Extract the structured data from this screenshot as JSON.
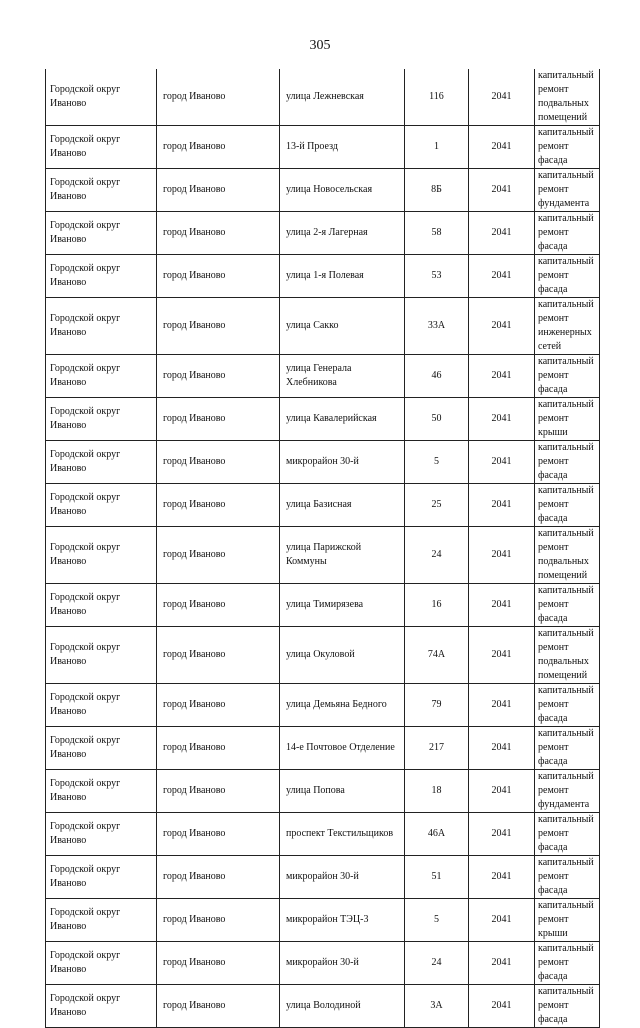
{
  "page_number": "305",
  "rows": [
    {
      "okrug": "Городской округ Иваново",
      "city": "город Иваново",
      "street": "улица Лежневская",
      "house": "116",
      "year": "2041",
      "work": "капитальный ремонт подвальных помещений"
    },
    {
      "okrug": "Городской округ Иваново",
      "city": "город Иваново",
      "street": "13-й Проезд",
      "house": "1",
      "year": "2041",
      "work": "капитальный ремонт фасада"
    },
    {
      "okrug": "Городской округ Иваново",
      "city": "город Иваново",
      "street": "улица Новосельская",
      "house": "8Б",
      "year": "2041",
      "work": "капитальный ремонт фундамента"
    },
    {
      "okrug": "Городской округ Иваново",
      "city": "город Иваново",
      "street": "улица 2-я Лагерная",
      "house": "58",
      "year": "2041",
      "work": "капитальный ремонт фасада"
    },
    {
      "okrug": "Городской округ Иваново",
      "city": "город Иваново",
      "street": "улица 1-я Полевая",
      "house": "53",
      "year": "2041",
      "work": "капитальный ремонт фасада"
    },
    {
      "okrug": "Городской округ Иваново",
      "city": "город Иваново",
      "street": "улица Сакко",
      "house": "33А",
      "year": "2041",
      "work": "капитальный ремонт инженерных сетей"
    },
    {
      "okrug": "Городской округ Иваново",
      "city": "город Иваново",
      "street": "улица Генерала Хлебникова",
      "house": "46",
      "year": "2041",
      "work": "капитальный ремонт фасада"
    },
    {
      "okrug": "Городской округ Иваново",
      "city": "город Иваново",
      "street": "улица Кавалерийская",
      "house": "50",
      "year": "2041",
      "work": "капитальный ремонт крыши"
    },
    {
      "okrug": "Городской округ Иваново",
      "city": "город Иваново",
      "street": "микрорайон 30-й",
      "house": "5",
      "year": "2041",
      "work": "капитальный ремонт фасада"
    },
    {
      "okrug": "Городской округ Иваново",
      "city": "город Иваново",
      "street": "улица Базисная",
      "house": "25",
      "year": "2041",
      "work": "капитальный ремонт фасада"
    },
    {
      "okrug": "Городской округ Иваново",
      "city": "город Иваново",
      "street": "улица Парижской Коммуны",
      "house": "24",
      "year": "2041",
      "work": "капитальный ремонт подвальных помещений"
    },
    {
      "okrug": "Городской округ Иваново",
      "city": "город Иваново",
      "street": "улица Тимирязева",
      "house": "16",
      "year": "2041",
      "work": "капитальный ремонт фасада"
    },
    {
      "okrug": "Городской округ Иваново",
      "city": "город Иваново",
      "street": "улица Окуловой",
      "house": "74А",
      "year": "2041",
      "work": "капитальный ремонт подвальных помещений"
    },
    {
      "okrug": "Городской округ Иваново",
      "city": "город Иваново",
      "street": "улица Демьяна Бедного",
      "house": "79",
      "year": "2041",
      "work": "капитальный ремонт фасада"
    },
    {
      "okrug": "Городской округ Иваново",
      "city": "город Иваново",
      "street": "14-е Почтовое Отделение",
      "house": "217",
      "year": "2041",
      "work": "капитальный ремонт фасада"
    },
    {
      "okrug": "Городской округ Иваново",
      "city": "город Иваново",
      "street": "улица Попова",
      "house": "18",
      "year": "2041",
      "work": "капитальный ремонт фундамента"
    },
    {
      "okrug": "Городской округ Иваново",
      "city": "город Иваново",
      "street": "проспект Текстильщиков",
      "house": "46А",
      "year": "2041",
      "work": "капитальный ремонт фасада"
    },
    {
      "okrug": "Городской округ Иваново",
      "city": "город Иваново",
      "street": "микрорайон 30-й",
      "house": "51",
      "year": "2041",
      "work": "капитальный ремонт фасада"
    },
    {
      "okrug": "Городской округ Иваново",
      "city": "город Иваново",
      "street": "микрорайон ТЭЦ-3",
      "house": "5",
      "year": "2041",
      "work": "капитальный ремонт крыши"
    },
    {
      "okrug": "Городской округ Иваново",
      "city": "город Иваново",
      "street": "микрорайон 30-й",
      "house": "24",
      "year": "2041",
      "work": "капитальный ремонт фасада"
    },
    {
      "okrug": "Городской округ Иваново",
      "city": "город Иваново",
      "street": "улица Володиной",
      "house": "3А",
      "year": "2041",
      "work": "капитальный ремонт фасада"
    }
  ]
}
